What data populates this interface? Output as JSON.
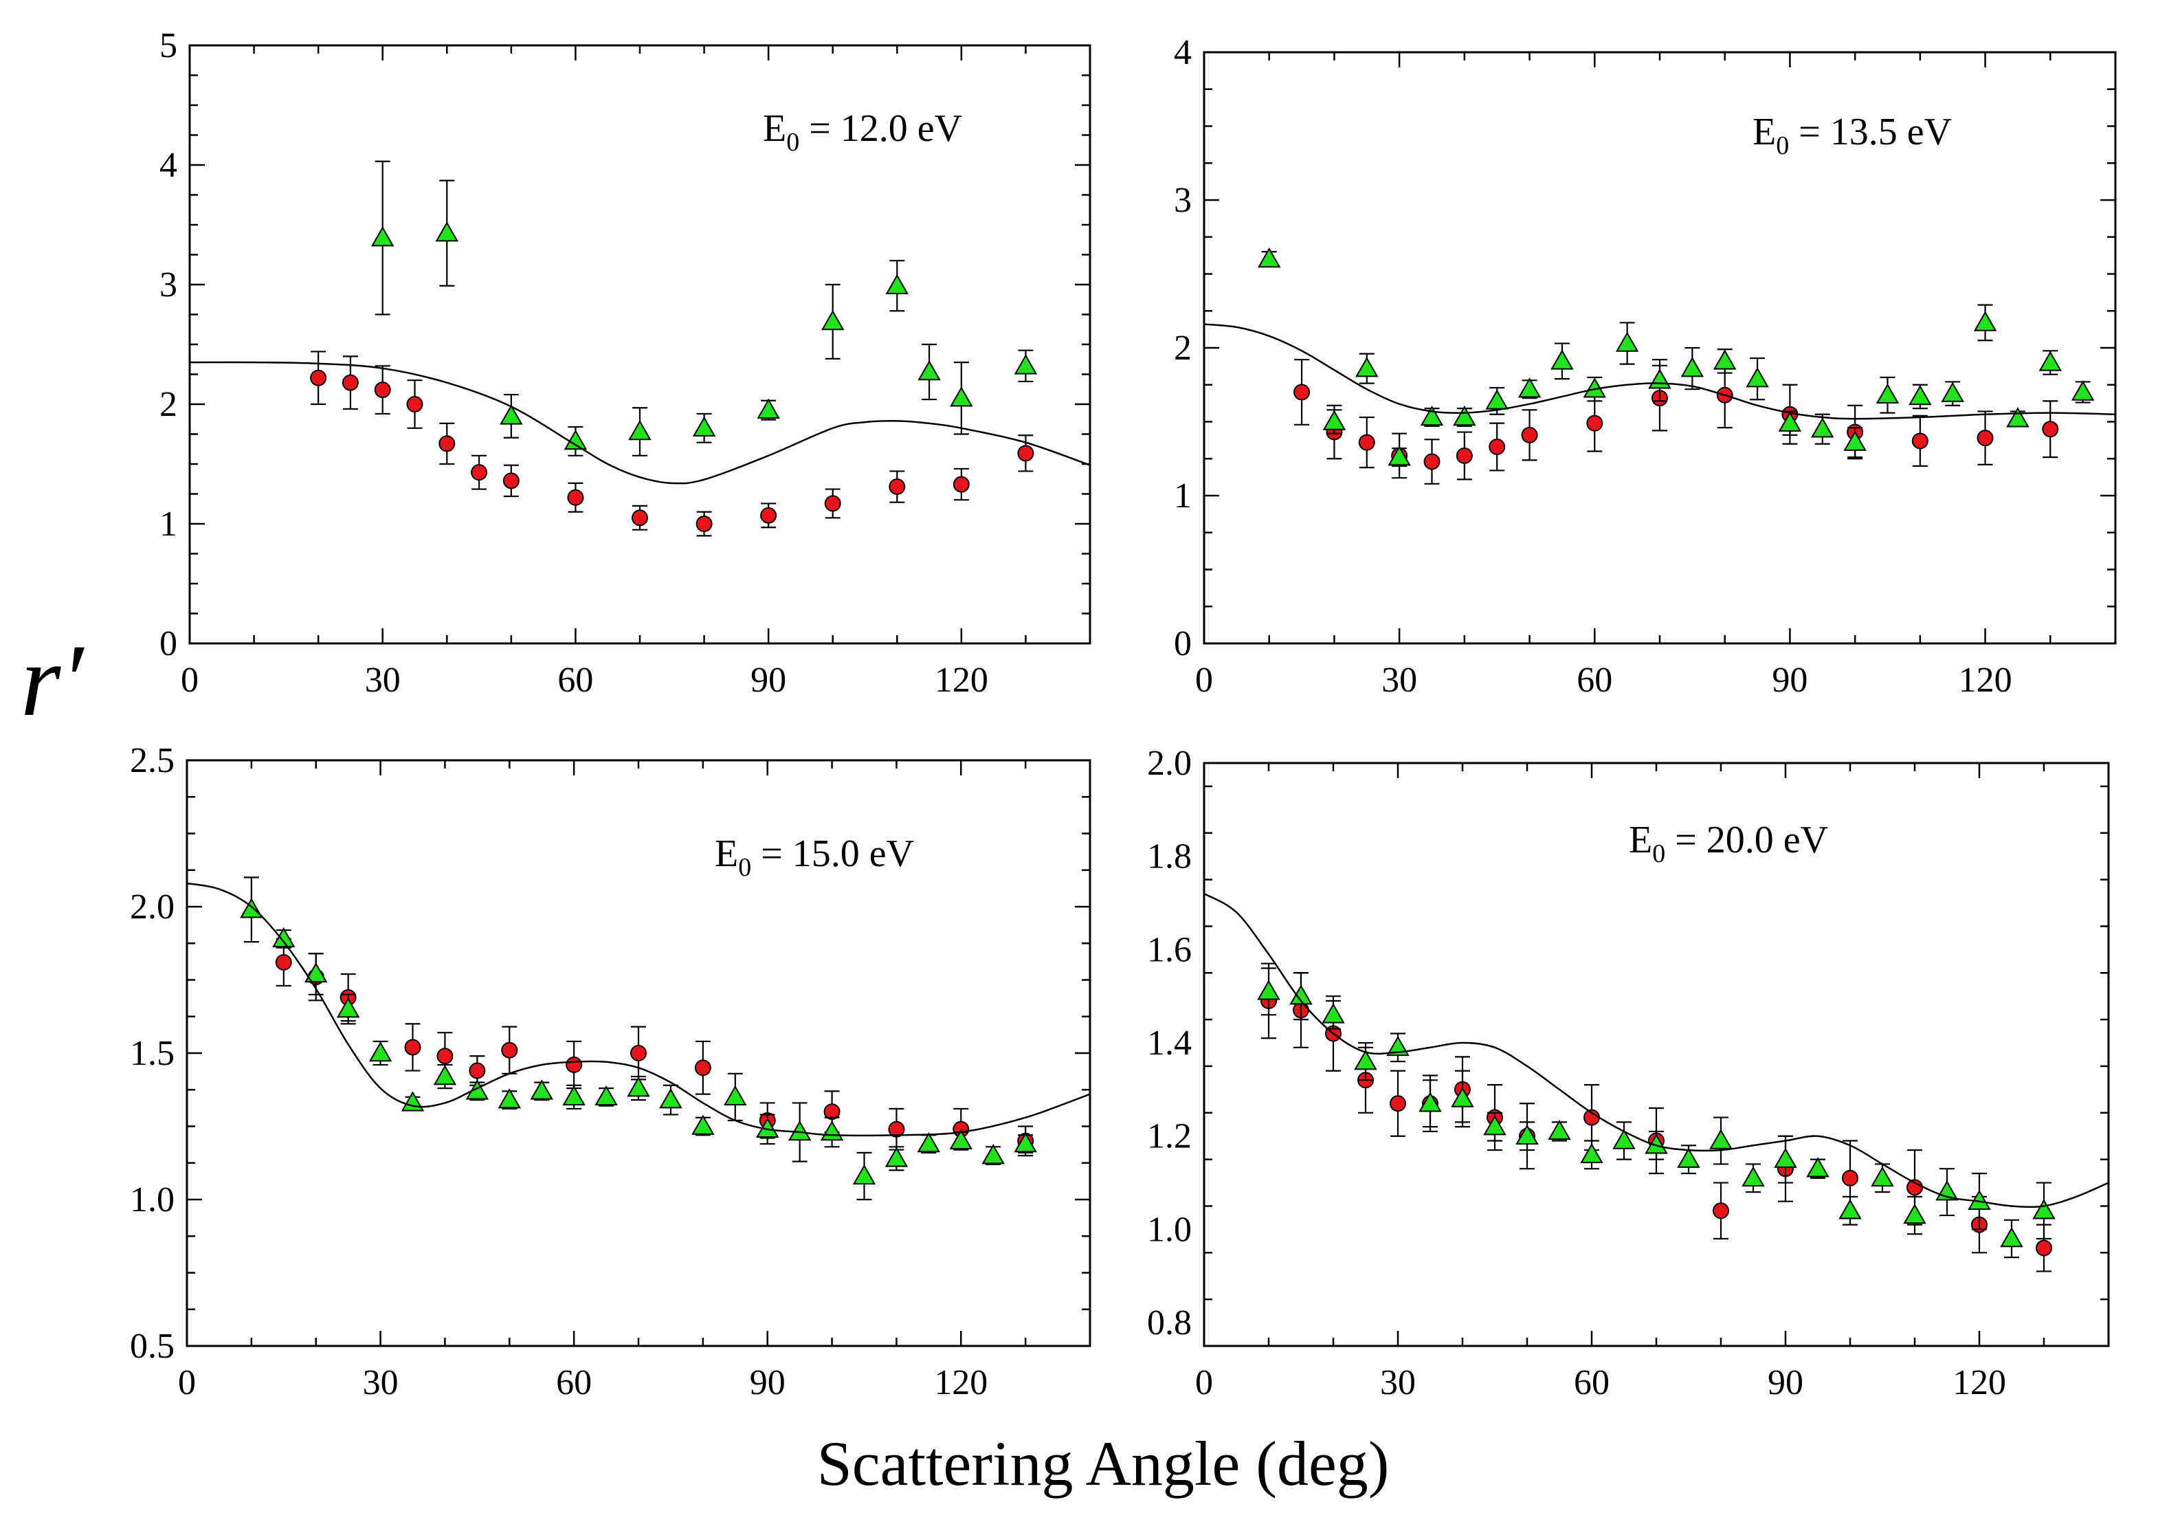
{
  "figure": {
    "xlabel": "Scattering Angle (deg)",
    "ylabel": "r′",
    "colors": {
      "circle": "#e8141c",
      "triangle": "#22e21c",
      "line": "#000000",
      "axis": "#000000"
    }
  },
  "chart_data": [
    {
      "type": "scatter",
      "title": "",
      "annotation": {
        "prefix": "E",
        "sub": "0",
        "suffix": " = 12.0 eV"
      },
      "xlim": [
        0,
        140
      ],
      "ylim": [
        0,
        5
      ],
      "xticks": [
        0,
        30,
        60,
        90,
        120
      ],
      "yticks": [
        0,
        1,
        2,
        3,
        4,
        5
      ],
      "yticklabels": [
        "0",
        "1",
        "2",
        "3",
        "4",
        "5"
      ],
      "series": [
        {
          "name": "circles",
          "marker": "circle",
          "x": [
            20,
            25,
            30,
            35,
            40,
            45,
            50,
            60,
            70,
            80,
            90,
            100,
            110,
            120,
            130
          ],
          "y": [
            2.22,
            2.18,
            2.12,
            2.0,
            1.67,
            1.43,
            1.36,
            1.22,
            1.05,
            1.0,
            1.07,
            1.17,
            1.31,
            1.33,
            1.59
          ],
          "err": [
            0.22,
            0.22,
            0.2,
            0.2,
            0.17,
            0.14,
            0.13,
            0.12,
            0.1,
            0.1,
            0.1,
            0.12,
            0.13,
            0.13,
            0.15
          ]
        },
        {
          "name": "triangles",
          "marker": "triangle",
          "x": [
            30,
            40,
            50,
            60,
            70,
            80,
            90,
            100,
            110,
            115,
            120,
            130
          ],
          "y": [
            3.39,
            3.43,
            1.9,
            1.69,
            1.77,
            1.8,
            1.95,
            2.69,
            2.99,
            2.27,
            2.05,
            2.32
          ],
          "err": [
            0.64,
            0.44,
            0.18,
            0.12,
            0.2,
            0.12,
            0.08,
            0.31,
            0.21,
            0.23,
            0.3,
            0.13
          ]
        },
        {
          "name": "theory",
          "marker": "line",
          "x": [
            0,
            10,
            20,
            30,
            40,
            50,
            60,
            65,
            70,
            75,
            80,
            90,
            100,
            105,
            110,
            115,
            120,
            130,
            140
          ],
          "y": [
            2.35,
            2.35,
            2.34,
            2.3,
            2.18,
            1.98,
            1.66,
            1.5,
            1.39,
            1.34,
            1.37,
            1.57,
            1.8,
            1.85,
            1.86,
            1.84,
            1.8,
            1.68,
            1.49
          ]
        }
      ]
    },
    {
      "type": "scatter",
      "title": "",
      "annotation": {
        "prefix": "E",
        "sub": "0",
        "suffix": " = 13.5 eV"
      },
      "xlim": [
        0,
        140
      ],
      "ylim": [
        0,
        4
      ],
      "xticks": [
        0,
        30,
        60,
        90,
        120
      ],
      "yticks": [
        0,
        1,
        2,
        3,
        4
      ],
      "yticklabels": [
        "0",
        "1",
        "2",
        "3",
        "4"
      ],
      "series": [
        {
          "name": "circles",
          "marker": "circle",
          "x": [
            15,
            20,
            25,
            30,
            35,
            40,
            45,
            50,
            60,
            70,
            80,
            90,
            100,
            110,
            120,
            130
          ],
          "y": [
            1.7,
            1.43,
            1.36,
            1.27,
            1.23,
            1.27,
            1.33,
            1.41,
            1.49,
            1.66,
            1.68,
            1.55,
            1.43,
            1.37,
            1.39,
            1.45
          ],
          "err": [
            0.22,
            0.18,
            0.17,
            0.15,
            0.15,
            0.16,
            0.16,
            0.17,
            0.19,
            0.22,
            0.22,
            0.2,
            0.18,
            0.17,
            0.18,
            0.19
          ]
        },
        {
          "name": "triangles",
          "marker": "triangle",
          "x": [
            10,
            20,
            25,
            30,
            35,
            40,
            45,
            50,
            55,
            60,
            65,
            70,
            75,
            80,
            85,
            90,
            95,
            100,
            105,
            110,
            115,
            120,
            125,
            130,
            135
          ],
          "y": [
            2.6,
            1.5,
            1.86,
            1.26,
            1.53,
            1.53,
            1.64,
            1.72,
            1.91,
            1.72,
            2.03,
            1.78,
            1.86,
            1.91,
            1.79,
            1.49,
            1.45,
            1.36,
            1.68,
            1.67,
            1.69,
            2.17,
            1.52,
            1.9,
            1.7
          ],
          "err": [
            0.05,
            0.08,
            0.1,
            0.06,
            0.06,
            0.06,
            0.09,
            0.06,
            0.12,
            0.08,
            0.14,
            0.14,
            0.14,
            0.08,
            0.14,
            0.08,
            0.1,
            0.1,
            0.12,
            0.08,
            0.08,
            0.12,
            0.05,
            0.08,
            0.07
          ]
        },
        {
          "name": "theory",
          "marker": "line",
          "x": [
            0,
            5,
            10,
            15,
            20,
            25,
            30,
            35,
            40,
            45,
            50,
            55,
            60,
            65,
            70,
            75,
            80,
            85,
            90,
            95,
            100,
            110,
            120,
            130,
            140
          ],
          "y": [
            2.16,
            2.14,
            2.08,
            1.98,
            1.85,
            1.72,
            1.62,
            1.57,
            1.56,
            1.58,
            1.62,
            1.67,
            1.72,
            1.75,
            1.76,
            1.74,
            1.68,
            1.61,
            1.56,
            1.53,
            1.52,
            1.53,
            1.55,
            1.56,
            1.55
          ]
        }
      ]
    },
    {
      "type": "scatter",
      "title": "",
      "annotation": {
        "prefix": "E",
        "sub": "0",
        "suffix": " = 15.0 eV"
      },
      "xlim": [
        0,
        140
      ],
      "ylim": [
        0.5,
        2.5
      ],
      "xticks": [
        0,
        30,
        60,
        90,
        120
      ],
      "yticks": [
        0.5,
        1.0,
        1.5,
        2.0,
        2.5
      ],
      "yticklabels": [
        "0.5",
        "1.0",
        "1.5",
        "2.0",
        "2.5"
      ],
      "series": [
        {
          "name": "circles",
          "marker": "circle",
          "x": [
            15,
            20,
            25,
            35,
            40,
            45,
            50,
            60,
            70,
            80,
            90,
            100,
            110,
            120,
            130
          ],
          "y": [
            1.81,
            1.76,
            1.69,
            1.52,
            1.49,
            1.44,
            1.51,
            1.46,
            1.5,
            1.45,
            1.27,
            1.3,
            1.24,
            1.24,
            1.2
          ],
          "err": [
            0.08,
            0.08,
            0.08,
            0.08,
            0.08,
            0.05,
            0.08,
            0.08,
            0.09,
            0.09,
            0.06,
            0.07,
            0.07,
            0.07,
            0.05
          ]
        },
        {
          "name": "triangles",
          "marker": "triangle",
          "x": [
            10,
            15,
            20,
            25,
            30,
            35,
            40,
            45,
            50,
            55,
            60,
            65,
            70,
            75,
            80,
            85,
            90,
            95,
            100,
            105,
            110,
            115,
            120,
            125,
            130
          ],
          "y": [
            1.99,
            1.89,
            1.77,
            1.65,
            1.5,
            1.33,
            1.42,
            1.37,
            1.34,
            1.37,
            1.35,
            1.35,
            1.38,
            1.34,
            1.25,
            1.35,
            1.24,
            1.23,
            1.23,
            1.08,
            1.14,
            1.19,
            1.2,
            1.15,
            1.19
          ],
          "err": [
            0.11,
            0.03,
            0.07,
            0.05,
            0.04,
            0.02,
            0.04,
            0.03,
            0.03,
            0.03,
            0.04,
            0.03,
            0.04,
            0.05,
            0.03,
            0.08,
            0.05,
            0.1,
            0.05,
            0.08,
            0.04,
            0.03,
            0.03,
            0.03,
            0.03
          ]
        },
        {
          "name": "theory",
          "marker": "line",
          "x": [
            0,
            5,
            10,
            15,
            20,
            25,
            30,
            35,
            40,
            45,
            50,
            55,
            60,
            65,
            70,
            75,
            80,
            85,
            90,
            95,
            100,
            110,
            120,
            130,
            140
          ],
          "y": [
            2.08,
            2.06,
            2.0,
            1.88,
            1.72,
            1.53,
            1.38,
            1.32,
            1.33,
            1.38,
            1.43,
            1.46,
            1.47,
            1.47,
            1.45,
            1.4,
            1.33,
            1.27,
            1.24,
            1.23,
            1.22,
            1.22,
            1.23,
            1.28,
            1.36
          ]
        }
      ]
    },
    {
      "type": "scatter",
      "title": "",
      "annotation": {
        "prefix": "E",
        "sub": "0",
        "suffix": " = 20.0 eV"
      },
      "xlim": [
        0,
        140
      ],
      "ylim": [
        0.75,
        2.0
      ],
      "xticks": [
        0,
        30,
        60,
        90,
        120
      ],
      "yticks": [
        0.8,
        1.0,
        1.2,
        1.4,
        1.6,
        1.8,
        2.0
      ],
      "yticklabels": [
        "0.8",
        "1.0",
        "1.2",
        "1.4",
        "1.6",
        "1.8",
        "2.0"
      ],
      "series": [
        {
          "name": "circles",
          "marker": "circle",
          "x": [
            10,
            15,
            20,
            25,
            30,
            35,
            40,
            45,
            50,
            60,
            70,
            80,
            90,
            100,
            110,
            120,
            130
          ],
          "y": [
            1.49,
            1.47,
            1.42,
            1.32,
            1.27,
            1.27,
            1.3,
            1.24,
            1.2,
            1.24,
            1.19,
            1.04,
            1.13,
            1.11,
            1.09,
            1.01,
            0.96
          ],
          "err": [
            0.08,
            0.08,
            0.08,
            0.07,
            0.07,
            0.06,
            0.07,
            0.07,
            0.07,
            0.07,
            0.07,
            0.06,
            0.07,
            0.08,
            0.08,
            0.06,
            0.05
          ]
        },
        {
          "name": "triangles",
          "marker": "triangle",
          "x": [
            10,
            15,
            20,
            25,
            30,
            35,
            40,
            45,
            50,
            55,
            60,
            65,
            70,
            75,
            80,
            85,
            90,
            95,
            100,
            105,
            110,
            115,
            120,
            125,
            130
          ],
          "y": [
            1.51,
            1.5,
            1.46,
            1.36,
            1.39,
            1.27,
            1.28,
            1.22,
            1.2,
            1.21,
            1.16,
            1.19,
            1.18,
            1.15,
            1.19,
            1.11,
            1.15,
            1.13,
            1.04,
            1.11,
            1.03,
            1.08,
            1.06,
            0.98,
            1.04
          ],
          "err": [
            0.05,
            0.05,
            0.03,
            0.04,
            0.03,
            0.05,
            0.06,
            0.03,
            0.03,
            0.02,
            0.03,
            0.04,
            0.03,
            0.03,
            0.05,
            0.03,
            0.05,
            0.02,
            0.03,
            0.03,
            0.04,
            0.05,
            0.06,
            0.04,
            0.06
          ]
        },
        {
          "name": "theory",
          "marker": "line",
          "x": [
            0,
            5,
            10,
            15,
            20,
            25,
            30,
            35,
            40,
            45,
            50,
            55,
            60,
            65,
            70,
            75,
            80,
            85,
            90,
            95,
            100,
            105,
            110,
            115,
            120,
            125,
            130,
            135,
            140
          ],
          "y": [
            1.72,
            1.68,
            1.59,
            1.49,
            1.42,
            1.38,
            1.38,
            1.39,
            1.4,
            1.39,
            1.35,
            1.3,
            1.25,
            1.21,
            1.18,
            1.17,
            1.17,
            1.18,
            1.19,
            1.2,
            1.18,
            1.14,
            1.1,
            1.07,
            1.06,
            1.05,
            1.05,
            1.07,
            1.1
          ]
        }
      ]
    }
  ]
}
